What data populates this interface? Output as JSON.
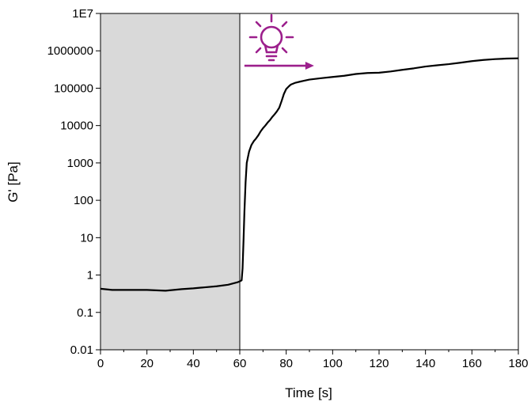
{
  "chart_data": {
    "type": "line",
    "xlabel": "Time [s]",
    "ylabel": "G' [Pa]",
    "xlim": [
      0,
      180
    ],
    "ylim": [
      0.01,
      10000000
    ],
    "yscale": "log",
    "grid": false,
    "x_ticks": [
      0,
      20,
      40,
      60,
      80,
      100,
      120,
      140,
      160,
      180
    ],
    "x_tick_labels": [
      "0",
      "20",
      "40",
      "60",
      "80",
      "100",
      "120",
      "140",
      "160",
      "180"
    ],
    "y_ticks": [
      0.01,
      0.1,
      1,
      10,
      100,
      1000,
      10000,
      100000,
      1000000,
      10000000
    ],
    "y_tick_labels": [
      "0.01",
      "0.1",
      "1",
      "10",
      "100",
      "1000",
      "10000",
      "100000",
      "1000000",
      "1E7"
    ],
    "shaded_region": {
      "x": [
        0,
        60
      ],
      "color": "#d9d9d9"
    },
    "annotation": {
      "icon": "lightbulb-icon",
      "arrow": "right-arrow",
      "color": "#9c1f8c",
      "x_start": 62,
      "x_end": 92,
      "y": 400000
    },
    "series": [
      {
        "color": "#000000",
        "x": [
          0,
          5,
          10,
          20,
          28,
          35,
          40,
          45,
          50,
          55,
          59,
          60,
          60.8,
          61.2,
          61.6,
          62,
          62.5,
          63,
          64,
          65,
          66,
          67,
          68,
          69,
          70,
          71,
          72,
          73,
          74,
          75,
          76,
          77,
          78,
          79,
          80,
          81,
          82,
          84,
          86,
          88,
          90,
          95,
          100,
          105,
          110,
          115,
          120,
          125,
          130,
          135,
          140,
          145,
          150,
          155,
          160,
          165,
          170,
          175,
          180
        ],
        "y": [
          0.43,
          0.4,
          0.4,
          0.4,
          0.38,
          0.42,
          0.44,
          0.47,
          0.5,
          0.55,
          0.64,
          0.68,
          0.72,
          1.5,
          8,
          50,
          300,
          1000,
          2000,
          3000,
          3800,
          4500,
          5500,
          7000,
          8500,
          10000,
          12000,
          14000,
          17000,
          20000,
          24000,
          30000,
          45000,
          70000,
          95000,
          110000,
          125000,
          140000,
          150000,
          160000,
          170000,
          185000,
          200000,
          215000,
          240000,
          255000,
          260000,
          280000,
          310000,
          340000,
          380000,
          410000,
          440000,
          480000,
          530000,
          570000,
          600000,
          620000,
          630000
        ]
      }
    ]
  }
}
